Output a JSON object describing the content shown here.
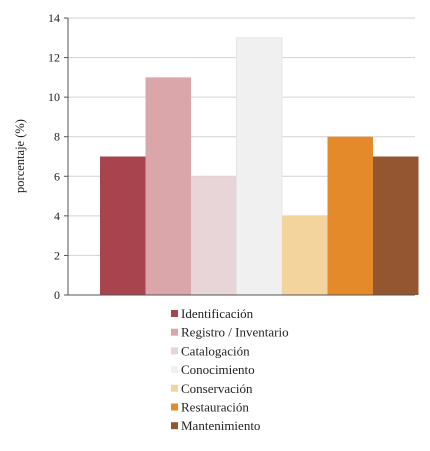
{
  "chart_data": {
    "type": "bar",
    "categories": [
      "Identificación",
      "Registro / Inventario",
      "Catalogación",
      "Conocimiento",
      "Conservación",
      "Restauración",
      "Mantenimiento"
    ],
    "values": [
      7,
      11,
      6,
      13,
      4,
      8,
      7
    ],
    "colors": [
      "#a8444e",
      "#dba6a9",
      "#e8d5d8",
      "#f0f0f1",
      "#f3d49c",
      "#e58a2a",
      "#935631"
    ],
    "title": "",
    "xlabel": "",
    "ylabel": "porcentaje (%)",
    "ylim": [
      0,
      14
    ],
    "yticks": [
      0,
      2,
      4,
      6,
      8,
      10,
      12,
      14
    ],
    "grid": true,
    "legend_position": "bottom"
  }
}
